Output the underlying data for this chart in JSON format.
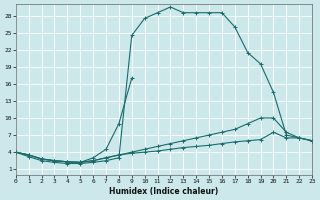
{
  "xlabel": "Humidex (Indice chaleur)",
  "xlim": [
    0,
    23
  ],
  "ylim": [
    0,
    30
  ],
  "yticks": [
    1,
    4,
    7,
    10,
    13,
    16,
    19,
    22,
    25,
    28
  ],
  "xticks": [
    0,
    1,
    2,
    3,
    4,
    5,
    6,
    7,
    8,
    9,
    10,
    11,
    12,
    13,
    14,
    15,
    16,
    17,
    18,
    19,
    20,
    21,
    22,
    23
  ],
  "background_color": "#cce8ea",
  "grid_color": "#b8d8da",
  "line_color": "#1a6b6b",
  "series": [
    {
      "x": [
        0,
        1,
        2,
        3,
        4,
        5,
        6,
        7,
        8,
        9,
        10,
        11,
        12,
        13,
        14,
        15,
        16,
        17,
        18,
        19,
        20,
        21,
        22,
        23
      ],
      "y": [
        4,
        3.2,
        2.5,
        2.2,
        2.0,
        2.0,
        2.2,
        2.5,
        3.0,
        24.5,
        27.5,
        28.5,
        29.5,
        28.5,
        28.5,
        28.5,
        28.5,
        26.0,
        21.5,
        19.5,
        14.5,
        7.0,
        6.5,
        6.0
      ]
    },
    {
      "x": [
        0,
        1,
        2,
        3,
        4,
        5,
        6,
        7,
        8,
        9
      ],
      "y": [
        4.0,
        3.5,
        2.8,
        2.5,
        2.3,
        2.2,
        3.0,
        4.5,
        9.0,
        17.0
      ]
    },
    {
      "x": [
        0,
        1,
        2,
        3,
        4,
        5,
        6,
        7,
        8,
        9,
        10,
        11,
        12,
        13,
        14,
        15,
        16,
        17,
        18,
        19,
        20,
        21,
        22,
        23
      ],
      "y": [
        4.0,
        3.5,
        2.8,
        2.5,
        2.3,
        2.2,
        2.5,
        3.0,
        3.5,
        4.0,
        4.5,
        5.0,
        5.5,
        6.0,
        6.5,
        7.0,
        7.5,
        8.0,
        9.0,
        10.0,
        10.0,
        7.5,
        6.5,
        6.0
      ]
    },
    {
      "x": [
        0,
        1,
        2,
        3,
        4,
        5,
        6,
        7,
        8,
        9,
        10,
        11,
        12,
        13,
        14,
        15,
        16,
        17,
        18,
        19,
        20,
        21,
        22,
        23
      ],
      "y": [
        4.0,
        3.5,
        2.8,
        2.5,
        2.3,
        2.2,
        2.5,
        3.0,
        3.5,
        3.8,
        4.0,
        4.2,
        4.5,
        4.8,
        5.0,
        5.2,
        5.5,
        5.8,
        6.0,
        6.2,
        7.5,
        6.5,
        6.5,
        6.0
      ]
    }
  ]
}
